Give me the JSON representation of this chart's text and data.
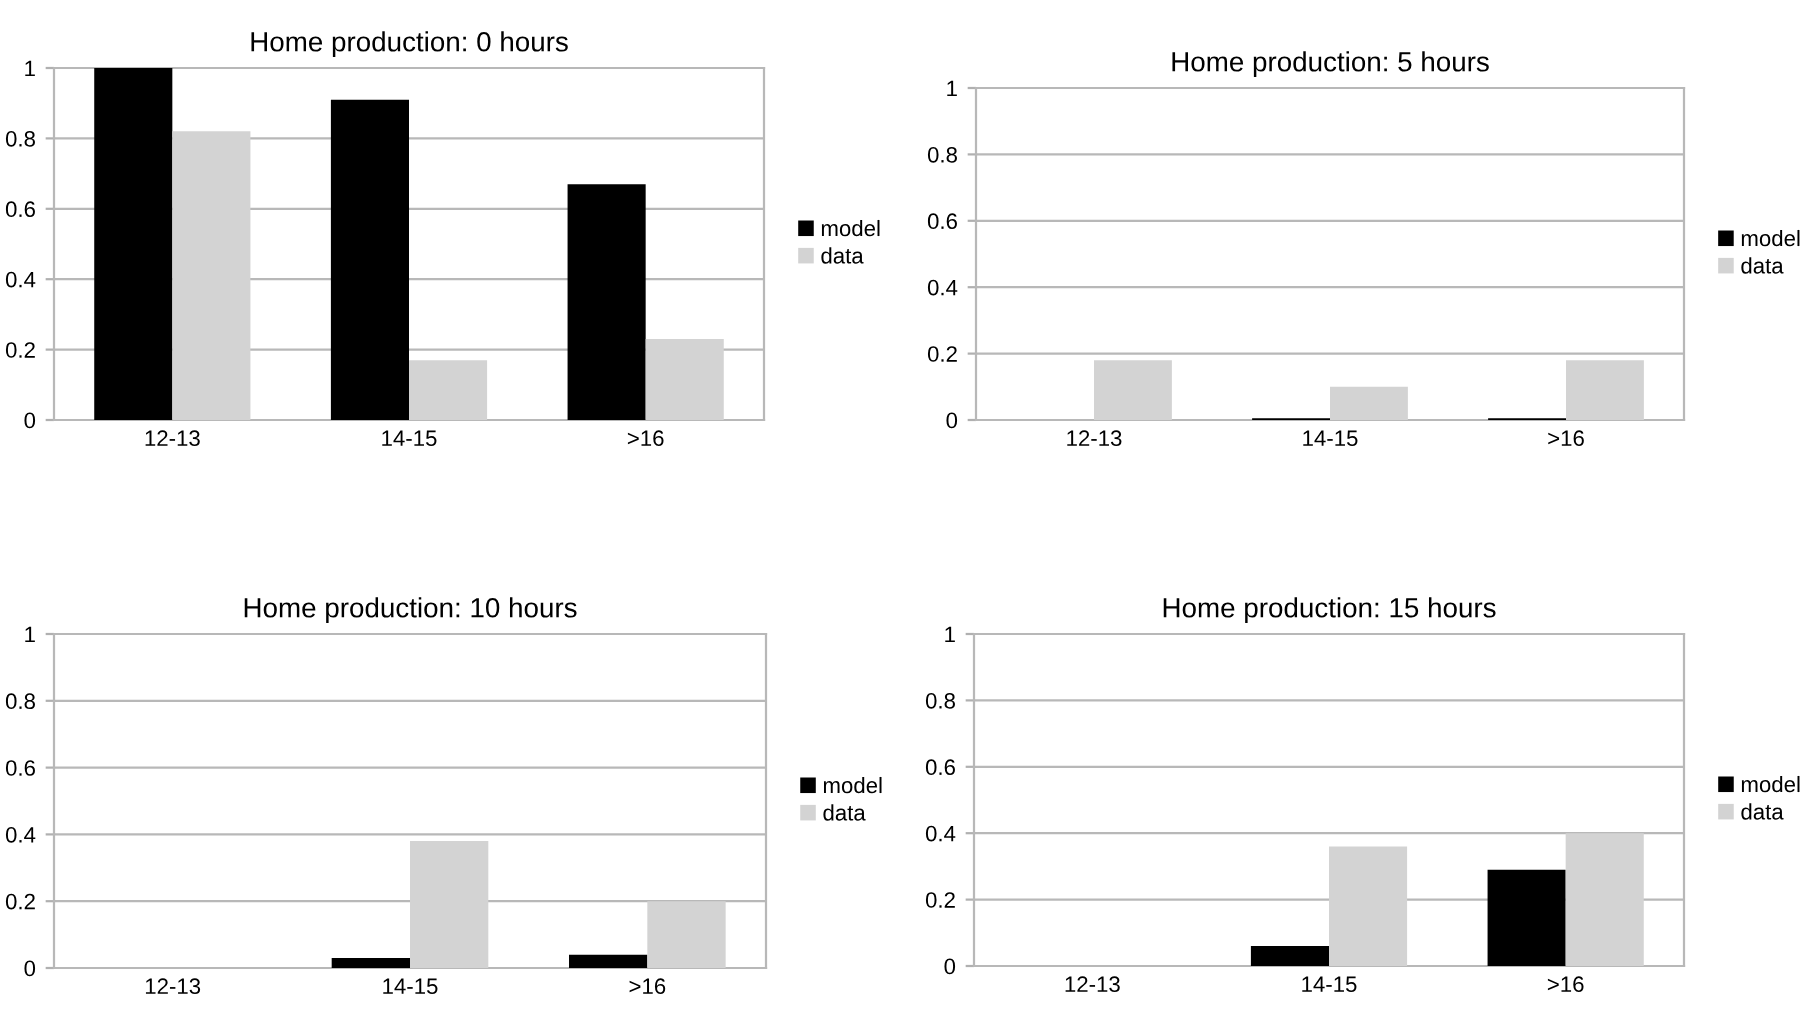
{
  "chart_data": [
    {
      "type": "bar",
      "title": "Home production: 0 hours",
      "categories": [
        "12-13",
        "14-15",
        ">16"
      ],
      "ylim": [
        0,
        1
      ],
      "yticks": [
        0,
        0.2,
        0.4,
        0.6,
        0.8,
        1
      ],
      "grid": "y",
      "legend": "right",
      "series": [
        {
          "name": "model",
          "color": "#000000",
          "values": [
            1,
            0.91,
            0.67
          ]
        },
        {
          "name": "data",
          "color": "#d3d3d3",
          "values": [
            0.82,
            0.17,
            0.23
          ]
        }
      ]
    },
    {
      "type": "bar",
      "title": "Home production: 5 hours",
      "categories": [
        "12-13",
        "14-15",
        ">16"
      ],
      "ylim": [
        0,
        1
      ],
      "yticks": [
        0,
        0.2,
        0.4,
        0.6,
        0.8,
        1
      ],
      "grid": "y",
      "legend": "right",
      "series": [
        {
          "name": "model",
          "color": "#000000",
          "values": [
            0,
            0.005,
            0.005
          ]
        },
        {
          "name": "data",
          "color": "#d3d3d3",
          "values": [
            0.18,
            0.1,
            0.18
          ]
        }
      ]
    },
    {
      "type": "bar",
      "title": "Home production: 10 hours",
      "categories": [
        "12-13",
        "14-15",
        ">16"
      ],
      "ylim": [
        0,
        1
      ],
      "yticks": [
        0,
        0.2,
        0.4,
        0.6,
        0.8,
        1
      ],
      "grid": "y",
      "legend": "right",
      "series": [
        {
          "name": "model",
          "color": "#000000",
          "values": [
            0,
            0.03,
            0.04
          ]
        },
        {
          "name": "data",
          "color": "#d3d3d3",
          "values": [
            0,
            0.38,
            0.2
          ]
        }
      ]
    },
    {
      "type": "bar",
      "title": "Home production: 15 hours",
      "categories": [
        "12-13",
        "14-15",
        ">16"
      ],
      "ylim": [
        0,
        1
      ],
      "yticks": [
        0,
        0.2,
        0.4,
        0.6,
        0.8,
        1
      ],
      "grid": "y",
      "legend": "right",
      "series": [
        {
          "name": "model",
          "color": "#000000",
          "values": [
            0,
            0.06,
            0.29
          ]
        },
        {
          "name": "data",
          "color": "#d3d3d3",
          "values": [
            0,
            0.36,
            0.4
          ]
        }
      ]
    }
  ]
}
